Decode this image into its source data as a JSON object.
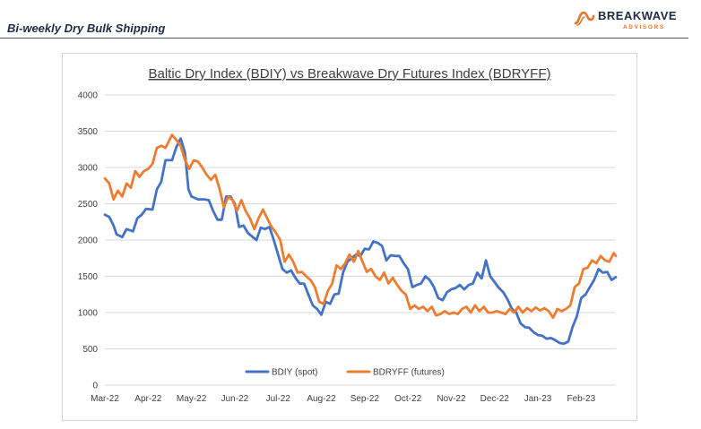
{
  "header": {
    "title": "Bi-weekly Dry Bulk Shipping",
    "logo_name": "BREAKWAVE",
    "logo_sub": "ADVISORS"
  },
  "colors": {
    "bdiy": "#4472c4",
    "bdryff": "#ed7d31",
    "grid": "#d9d9d9",
    "logo_accent": "#e2772f"
  },
  "chart_data": {
    "type": "line",
    "title": "Baltic Dry Index (BDIY) vs Breakwave Dry Futures Index (BDRYFF)",
    "xlabel": "",
    "ylabel": "",
    "ylim": [
      0,
      4000
    ],
    "yticks": [
      0,
      500,
      1000,
      1500,
      2000,
      2500,
      3000,
      3500,
      4000
    ],
    "xlim": [
      0,
      11.8
    ],
    "xtick_labels": [
      "Mar-22",
      "Apr-22",
      "May-22",
      "Jun-22",
      "Jul-22",
      "Aug-22",
      "Sep-22",
      "Oct-22",
      "Nov-22",
      "Dec-22",
      "Jan-23",
      "Feb-23"
    ],
    "grid": true,
    "legend_position": "bottom",
    "series": [
      {
        "name": "BDIY (spot)",
        "color": "#4472c4",
        "points": [
          [
            0.0,
            2350
          ],
          [
            0.1,
            2320
          ],
          [
            0.2,
            2200
          ],
          [
            0.27,
            2080
          ],
          [
            0.4,
            2040
          ],
          [
            0.5,
            2150
          ],
          [
            0.65,
            2120
          ],
          [
            0.75,
            2300
          ],
          [
            0.85,
            2350
          ],
          [
            0.95,
            2430
          ],
          [
            1.1,
            2420
          ],
          [
            1.2,
            2700
          ],
          [
            1.3,
            2800
          ],
          [
            1.4,
            3100
          ],
          [
            1.55,
            3100
          ],
          [
            1.65,
            3280
          ],
          [
            1.75,
            3400
          ],
          [
            1.85,
            3200
          ],
          [
            1.93,
            2700
          ],
          [
            2.0,
            2600
          ],
          [
            2.15,
            2560
          ],
          [
            2.3,
            2560
          ],
          [
            2.4,
            2550
          ],
          [
            2.5,
            2400
          ],
          [
            2.6,
            2280
          ],
          [
            2.7,
            2280
          ],
          [
            2.8,
            2600
          ],
          [
            2.9,
            2600
          ],
          [
            3.0,
            2500
          ],
          [
            3.1,
            2180
          ],
          [
            3.2,
            2200
          ],
          [
            3.3,
            2100
          ],
          [
            3.4,
            2050
          ],
          [
            3.5,
            2000
          ],
          [
            3.6,
            2170
          ],
          [
            3.7,
            2150
          ],
          [
            3.8,
            2180
          ],
          [
            3.9,
            2000
          ],
          [
            4.0,
            1800
          ],
          [
            4.1,
            1600
          ],
          [
            4.2,
            1550
          ],
          [
            4.3,
            1580
          ],
          [
            4.4,
            1480
          ],
          [
            4.5,
            1400
          ],
          [
            4.6,
            1400
          ],
          [
            4.7,
            1250
          ],
          [
            4.8,
            1100
          ],
          [
            4.9,
            1050
          ],
          [
            5.0,
            970
          ],
          [
            5.1,
            1150
          ],
          [
            5.2,
            1120
          ],
          [
            5.3,
            1250
          ],
          [
            5.4,
            1260
          ],
          [
            5.5,
            1550
          ],
          [
            5.6,
            1700
          ],
          [
            5.7,
            1750
          ],
          [
            5.8,
            1800
          ],
          [
            5.9,
            1780
          ],
          [
            6.0,
            1880
          ],
          [
            6.1,
            1870
          ],
          [
            6.2,
            1980
          ],
          [
            6.3,
            1960
          ],
          [
            6.4,
            1920
          ],
          [
            6.5,
            1720
          ],
          [
            6.6,
            1790
          ],
          [
            6.7,
            1780
          ],
          [
            6.8,
            1780
          ],
          [
            6.9,
            1680
          ],
          [
            7.0,
            1600
          ],
          [
            7.1,
            1350
          ],
          [
            7.2,
            1380
          ],
          [
            7.3,
            1400
          ],
          [
            7.4,
            1500
          ],
          [
            7.5,
            1450
          ],
          [
            7.6,
            1350
          ],
          [
            7.7,
            1200
          ],
          [
            7.8,
            1170
          ],
          [
            7.9,
            1280
          ],
          [
            8.0,
            1320
          ],
          [
            8.1,
            1340
          ],
          [
            8.2,
            1380
          ],
          [
            8.3,
            1320
          ],
          [
            8.4,
            1380
          ],
          [
            8.5,
            1400
          ],
          [
            8.6,
            1550
          ],
          [
            8.7,
            1470
          ],
          [
            8.8,
            1720
          ],
          [
            8.9,
            1500
          ],
          [
            9.0,
            1420
          ],
          [
            9.1,
            1340
          ],
          [
            9.2,
            1280
          ],
          [
            9.3,
            1180
          ],
          [
            9.4,
            1050
          ],
          [
            9.5,
            1000
          ],
          [
            9.6,
            850
          ],
          [
            9.7,
            800
          ],
          [
            9.8,
            790
          ],
          [
            9.9,
            730
          ],
          [
            10.0,
            690
          ],
          [
            10.1,
            680
          ],
          [
            10.2,
            640
          ],
          [
            10.3,
            650
          ],
          [
            10.4,
            620
          ],
          [
            10.5,
            580
          ],
          [
            10.6,
            570
          ],
          [
            10.7,
            600
          ],
          [
            10.8,
            800
          ],
          [
            10.9,
            950
          ],
          [
            11.0,
            1200
          ],
          [
            11.1,
            1250
          ],
          [
            11.2,
            1350
          ],
          [
            11.3,
            1450
          ],
          [
            11.4,
            1600
          ],
          [
            11.5,
            1550
          ],
          [
            11.6,
            1560
          ],
          [
            11.7,
            1450
          ],
          [
            11.8,
            1490
          ]
        ]
      },
      {
        "name": "BDRYFF (futures)",
        "color": "#ed7d31",
        "points": [
          [
            0.0,
            2850
          ],
          [
            0.1,
            2780
          ],
          [
            0.2,
            2560
          ],
          [
            0.3,
            2680
          ],
          [
            0.4,
            2600
          ],
          [
            0.5,
            2780
          ],
          [
            0.6,
            2720
          ],
          [
            0.7,
            2950
          ],
          [
            0.8,
            2870
          ],
          [
            0.9,
            2950
          ],
          [
            1.0,
            2980
          ],
          [
            1.1,
            3050
          ],
          [
            1.2,
            3270
          ],
          [
            1.3,
            3300
          ],
          [
            1.4,
            3270
          ],
          [
            1.55,
            3450
          ],
          [
            1.65,
            3380
          ],
          [
            1.75,
            3300
          ],
          [
            1.85,
            3100
          ],
          [
            1.95,
            2980
          ],
          [
            2.05,
            3100
          ],
          [
            2.15,
            3080
          ],
          [
            2.25,
            3000
          ],
          [
            2.35,
            2900
          ],
          [
            2.45,
            2830
          ],
          [
            2.55,
            2900
          ],
          [
            2.65,
            2700
          ],
          [
            2.75,
            2450
          ],
          [
            2.85,
            2600
          ],
          [
            2.95,
            2550
          ],
          [
            3.05,
            2400
          ],
          [
            3.15,
            2550
          ],
          [
            3.25,
            2400
          ],
          [
            3.35,
            2300
          ],
          [
            3.45,
            2150
          ],
          [
            3.55,
            2300
          ],
          [
            3.65,
            2420
          ],
          [
            3.75,
            2300
          ],
          [
            3.85,
            2180
          ],
          [
            3.95,
            2100
          ],
          [
            4.05,
            2000
          ],
          [
            4.15,
            1700
          ],
          [
            4.25,
            1800
          ],
          [
            4.35,
            1700
          ],
          [
            4.45,
            1550
          ],
          [
            4.55,
            1560
          ],
          [
            4.65,
            1500
          ],
          [
            4.75,
            1450
          ],
          [
            4.85,
            1350
          ],
          [
            4.95,
            1150
          ],
          [
            5.05,
            1120
          ],
          [
            5.15,
            1300
          ],
          [
            5.25,
            1400
          ],
          [
            5.35,
            1650
          ],
          [
            5.45,
            1600
          ],
          [
            5.55,
            1680
          ],
          [
            5.65,
            1800
          ],
          [
            5.75,
            1700
          ],
          [
            5.85,
            1850
          ],
          [
            5.95,
            1700
          ],
          [
            6.05,
            1560
          ],
          [
            6.15,
            1600
          ],
          [
            6.25,
            1500
          ],
          [
            6.35,
            1450
          ],
          [
            6.45,
            1550
          ],
          [
            6.55,
            1400
          ],
          [
            6.65,
            1480
          ],
          [
            6.75,
            1380
          ],
          [
            6.85,
            1300
          ],
          [
            6.95,
            1250
          ],
          [
            7.05,
            1050
          ],
          [
            7.15,
            1100
          ],
          [
            7.25,
            1050
          ],
          [
            7.35,
            1080
          ],
          [
            7.45,
            1020
          ],
          [
            7.55,
            1080
          ],
          [
            7.65,
            960
          ],
          [
            7.75,
            980
          ],
          [
            7.85,
            1020
          ],
          [
            7.95,
            980
          ],
          [
            8.05,
            1000
          ],
          [
            8.15,
            980
          ],
          [
            8.25,
            1050
          ],
          [
            8.35,
            1080
          ],
          [
            8.45,
            1000
          ],
          [
            8.55,
            1100
          ],
          [
            8.65,
            1020
          ],
          [
            8.75,
            1080
          ],
          [
            8.85,
            1000
          ],
          [
            8.95,
            1000
          ],
          [
            9.05,
            1020
          ],
          [
            9.15,
            1000
          ],
          [
            9.25,
            980
          ],
          [
            9.35,
            1050
          ],
          [
            9.45,
            1000
          ],
          [
            9.55,
            1080
          ],
          [
            9.65,
            1000
          ],
          [
            9.75,
            1060
          ],
          [
            9.85,
            1020
          ],
          [
            9.95,
            1070
          ],
          [
            10.05,
            1030
          ],
          [
            10.15,
            1060
          ],
          [
            10.25,
            1020
          ],
          [
            10.35,
            930
          ],
          [
            10.45,
            1050
          ],
          [
            10.55,
            1020
          ],
          [
            10.65,
            1050
          ],
          [
            10.75,
            1100
          ],
          [
            10.85,
            1350
          ],
          [
            10.95,
            1400
          ],
          [
            11.05,
            1600
          ],
          [
            11.15,
            1620
          ],
          [
            11.25,
            1720
          ],
          [
            11.35,
            1680
          ],
          [
            11.45,
            1780
          ],
          [
            11.55,
            1720
          ],
          [
            11.65,
            1700
          ],
          [
            11.75,
            1820
          ],
          [
            11.8,
            1780
          ]
        ]
      }
    ]
  }
}
